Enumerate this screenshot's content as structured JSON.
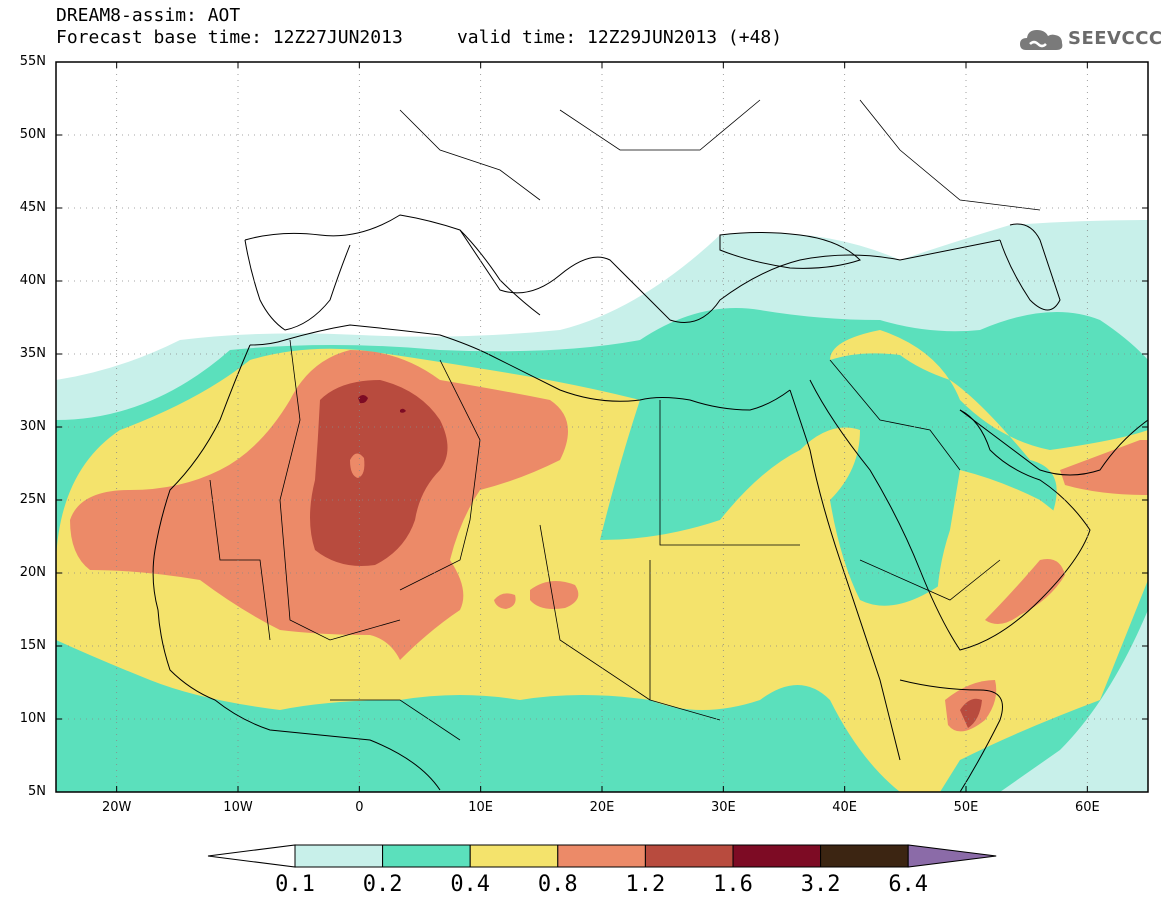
{
  "header": {
    "line1": "DREAM8-assim: AOT",
    "line2": "Forecast base time: 12Z27JUN2013     valid time: 12Z29JUN2013 (+48)"
  },
  "logo": {
    "text": "SEEVCCC",
    "icon": "cloud-icon"
  },
  "map": {
    "lat_labels": [
      "55N",
      "50N",
      "45N",
      "40N",
      "35N",
      "30N",
      "25N",
      "20N",
      "15N",
      "10N",
      "5N"
    ],
    "lon_labels": [
      "20W",
      "10W",
      "0",
      "10E",
      "20E",
      "30E",
      "40E",
      "50E",
      "60E"
    ],
    "lat_range": [
      5,
      55
    ],
    "lon_range": [
      -25,
      65
    ],
    "grid": "dotted"
  },
  "legend": {
    "levels": [
      "0.1",
      "0.2",
      "0.4",
      "0.8",
      "1.2",
      "1.6",
      "3.2",
      "6.4"
    ],
    "colors": [
      "#c8f0ea",
      "#5be0bc",
      "#f4e36c",
      "#ec8a68",
      "#b84b3e",
      "#7d0b24",
      "#3c2512",
      "#8b6ba8"
    ]
  }
}
